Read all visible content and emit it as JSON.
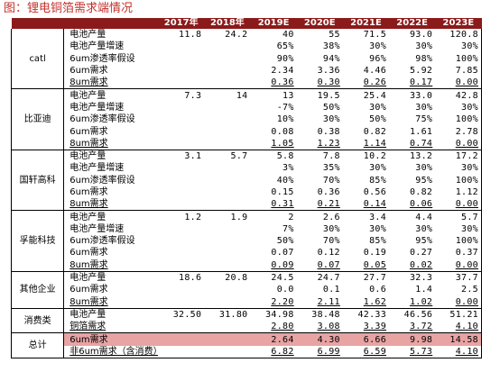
{
  "title": "图：锂电铜箔需求端情况",
  "table": {
    "columns": [
      "2017年",
      "2018年",
      "2019E",
      "2020E",
      "2021E",
      "2022E",
      "2023E"
    ],
    "groups": [
      {
        "name": "catl",
        "rows": [
          {
            "label": "电池产量",
            "values": [
              "11.8",
              "24.2",
              "40",
              "55",
              "71.5",
              "93.0",
              "120.8"
            ]
          },
          {
            "label": "电池产量增速",
            "values": [
              "65%",
              "38%",
              "30%",
              "30%",
              "30%"
            ]
          },
          {
            "label": "6um渗透率假设",
            "values": [
              "90%",
              "94%",
              "96%",
              "98%",
              "100%"
            ]
          },
          {
            "label": "6um需求",
            "values": [
              "2.34",
              "3.36",
              "4.46",
              "5.92",
              "7.85"
            ]
          },
          {
            "label": "8um需求",
            "values": [
              "0.36",
              "0.30",
              "0.26",
              "0.17",
              "0.00"
            ]
          }
        ]
      },
      {
        "name": "比亚迪",
        "rows": [
          {
            "label": "电池产量",
            "values": [
              "7.3",
              "14",
              "13",
              "19.5",
              "25.4",
              "33.0",
              "42.8"
            ]
          },
          {
            "label": "电池产量增速",
            "values": [
              "-7%",
              "50%",
              "30%",
              "30%",
              "30%"
            ]
          },
          {
            "label": "6um渗透率假设",
            "values": [
              "10%",
              "30%",
              "50%",
              "75%",
              "100%"
            ]
          },
          {
            "label": "6um需求",
            "values": [
              "0.08",
              "0.38",
              "0.82",
              "1.61",
              "2.78"
            ]
          },
          {
            "label": "8um需求",
            "values": [
              "1.05",
              "1.23",
              "1.14",
              "0.74",
              "0.00"
            ]
          }
        ]
      },
      {
        "name": "国轩高科",
        "rows": [
          {
            "label": "电池产量",
            "values": [
              "3.1",
              "5.7",
              "5.8",
              "7.8",
              "10.2",
              "13.2",
              "17.2"
            ]
          },
          {
            "label": "电池产量增速",
            "values": [
              "3%",
              "35%",
              "30%",
              "30%",
              "30%"
            ]
          },
          {
            "label": "6um渗透率假设",
            "values": [
              "40%",
              "70%",
              "85%",
              "95%",
              "100%"
            ]
          },
          {
            "label": "6um需求",
            "values": [
              "0.15",
              "0.36",
              "0.56",
              "0.82",
              "1.12"
            ]
          },
          {
            "label": "8um需求",
            "values": [
              "0.31",
              "0.21",
              "0.14",
              "0.06",
              "0.00"
            ]
          }
        ]
      },
      {
        "name": "孚能科技",
        "rows": [
          {
            "label": "电池产量",
            "values": [
              "1.2",
              "1.9",
              "2",
              "2.6",
              "3.4",
              "4.4",
              "5.7"
            ]
          },
          {
            "label": "电池产量增速",
            "values": [
              "7%",
              "30%",
              "30%",
              "30%",
              "30%"
            ]
          },
          {
            "label": "6um渗透率假设",
            "values": [
              "50%",
              "70%",
              "85%",
              "95%",
              "100%"
            ]
          },
          {
            "label": "6um需求",
            "values": [
              "0.07",
              "0.12",
              "0.19",
              "0.27",
              "0.37"
            ]
          },
          {
            "label": "8um需求",
            "values": [
              "0.09",
              "0.07",
              "0.05",
              "0.02",
              "0.00"
            ]
          }
        ]
      },
      {
        "name": "其他企业",
        "rows": [
          {
            "label": "电池产量",
            "values": [
              "18.6",
              "20.8",
              "24.5",
              "24.7",
              "27.7",
              "32.3",
              "37.7"
            ]
          },
          {
            "label": "6um需求",
            "values": [
              "0.0",
              "0.1",
              "0.6",
              "1.4",
              "2.5"
            ]
          },
          {
            "label": "8um需求",
            "values": [
              "2.20",
              "2.11",
              "1.62",
              "1.02",
              "0.00"
            ]
          }
        ]
      },
      {
        "name": "消费类",
        "rows": [
          {
            "label": "电池产量",
            "values": [
              "32.50",
              "31.80",
              "34.98",
              "38.48",
              "42.33",
              "46.56",
              "51.21"
            ]
          },
          {
            "label": "铜箔需求",
            "values": [
              "2.80",
              "3.08",
              "3.39",
              "3.72",
              "4.10"
            ]
          }
        ]
      },
      {
        "name": "总计",
        "highlight_first_row": true,
        "rows": [
          {
            "label": "6um需求",
            "values": [
              "2.64",
              "4.30",
              "6.66",
              "9.98",
              "14.58"
            ]
          },
          {
            "label": "非6um需求（含消费）",
            "values": [
              "6.82",
              "6.99",
              "6.59",
              "5.73",
              "4.10"
            ]
          }
        ]
      }
    ]
  }
}
